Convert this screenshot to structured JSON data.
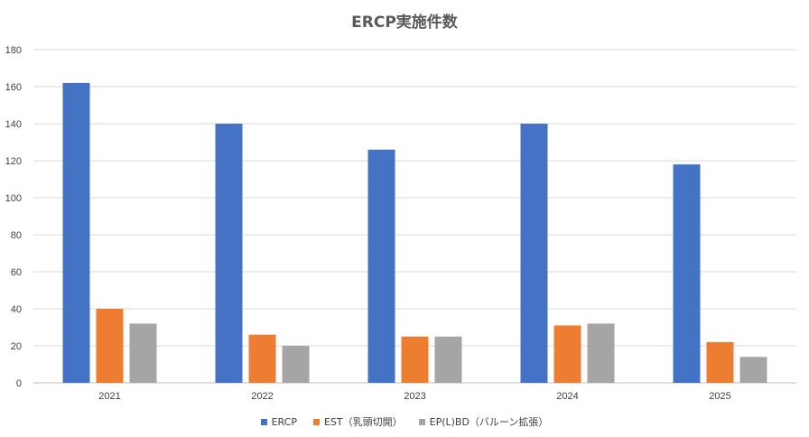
{
  "chart_data": {
    "type": "bar",
    "title": "ERCP実施件数",
    "categories": [
      "2021",
      "2022",
      "2023",
      "2024",
      "2025"
    ],
    "series": [
      {
        "name": "ERCP",
        "color": "#4472c4",
        "values": [
          162,
          140,
          126,
          140,
          118
        ]
      },
      {
        "name": "EST（乳頭切開）",
        "color": "#ed7d31",
        "values": [
          40,
          26,
          25,
          31,
          22
        ]
      },
      {
        "name": "EP(L)BD（バルーン拡張）",
        "color": "#a5a5a5",
        "values": [
          32,
          20,
          25,
          32,
          14
        ]
      }
    ],
    "ylim": [
      0,
      180
    ],
    "yticks": [
      0,
      20,
      40,
      60,
      80,
      100,
      120,
      140,
      160,
      180
    ],
    "grid": true,
    "legend": "bottom"
  }
}
